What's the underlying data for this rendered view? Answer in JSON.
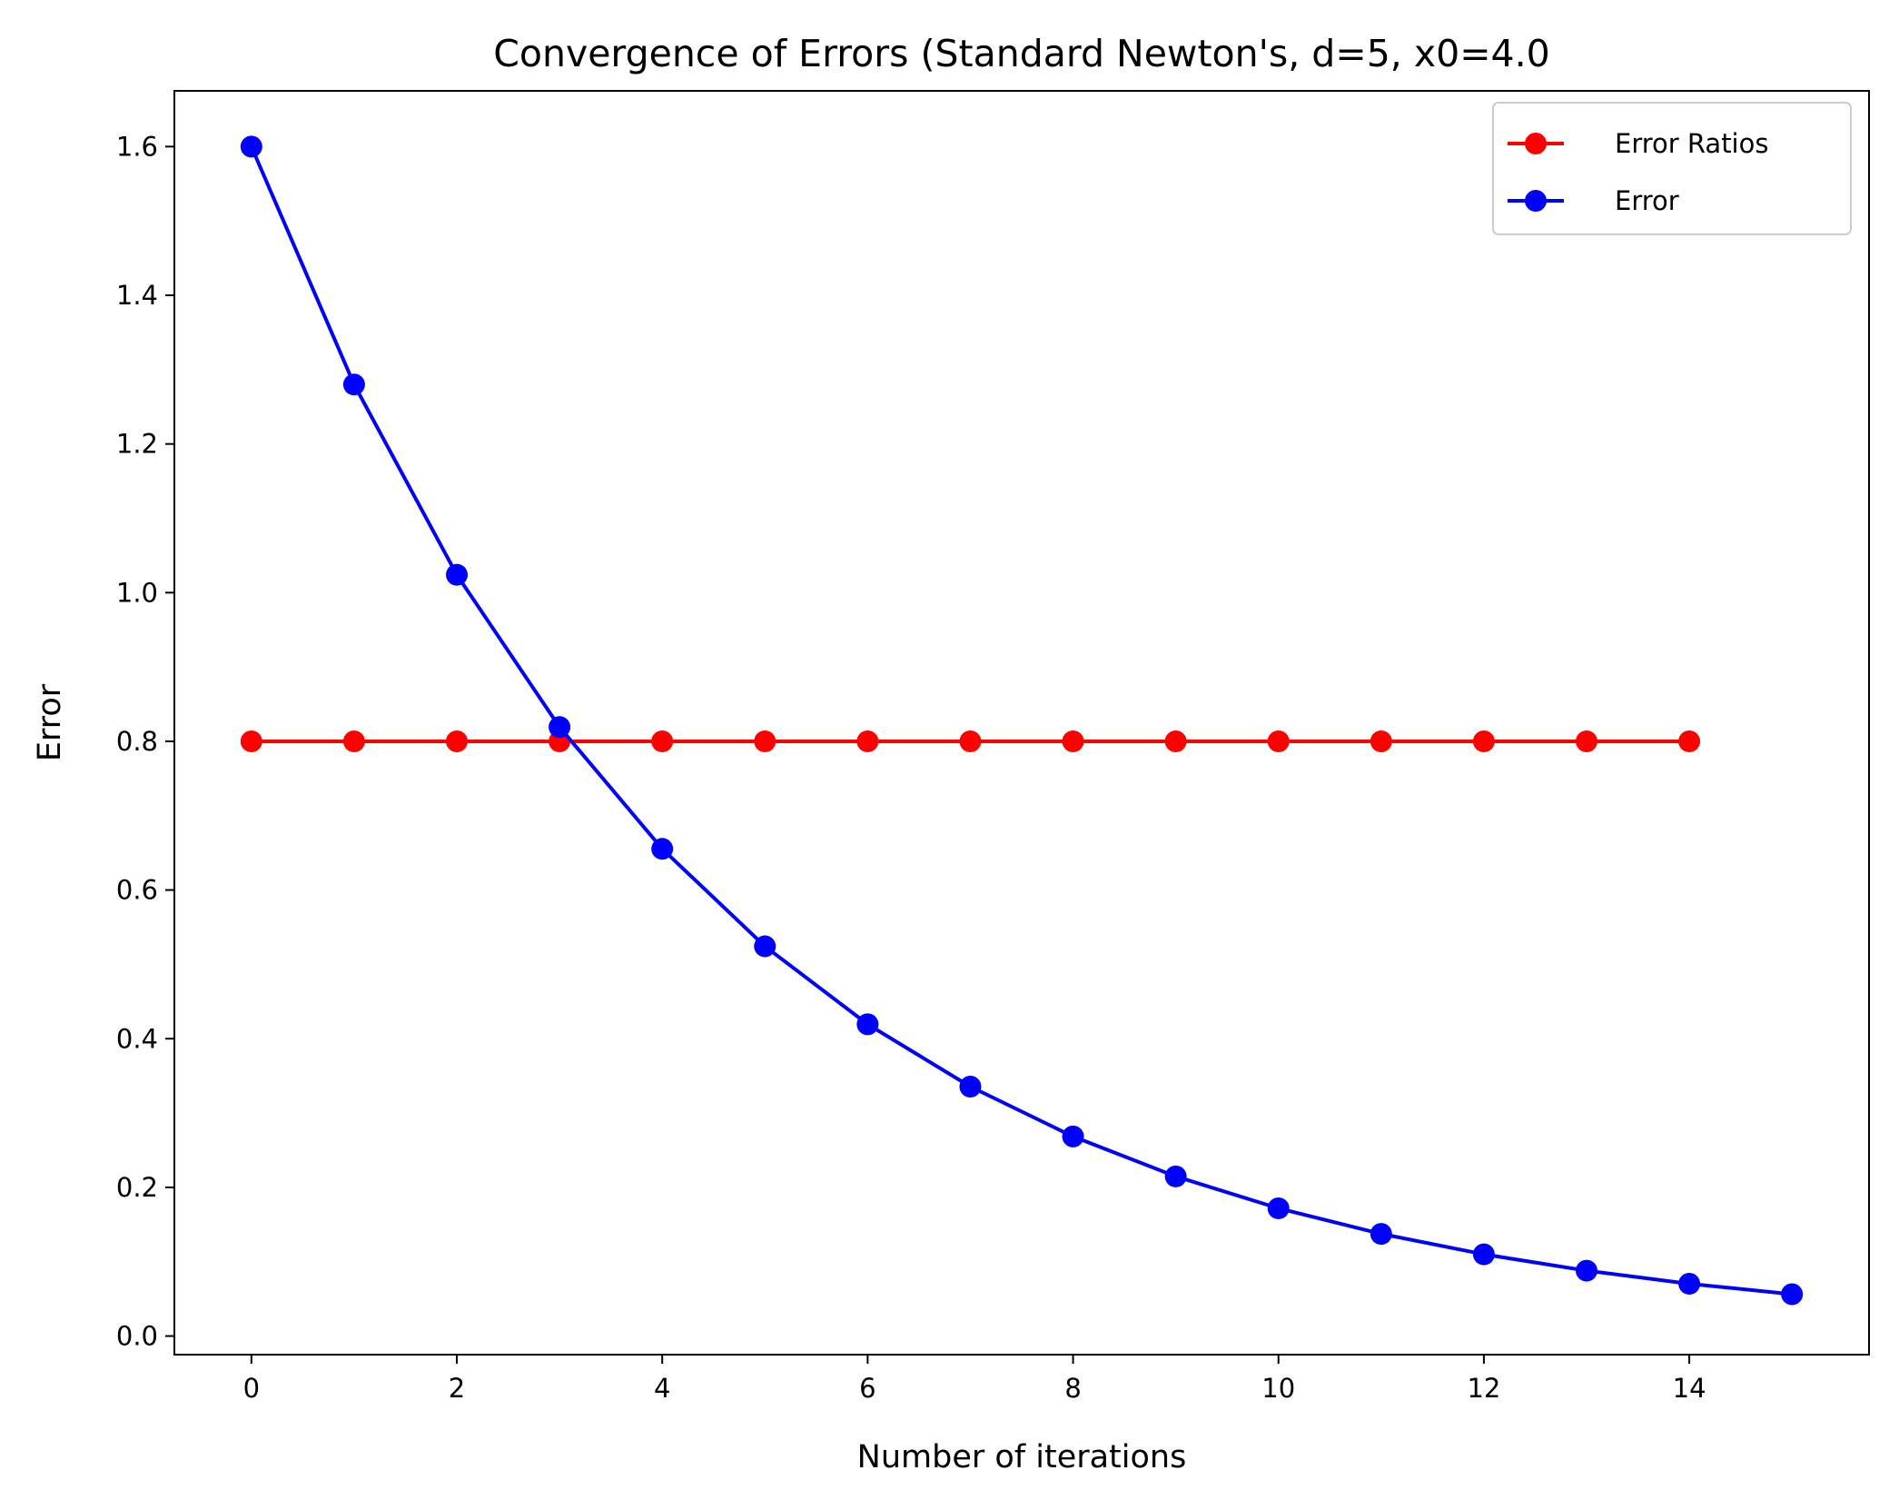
{
  "chart_data": {
    "type": "line",
    "title": "Convergence of Errors (Standard Newton's, d=5, x0=4.0",
    "xlabel": "Number of iterations",
    "ylabel": "Error",
    "xlim": [
      -0.75,
      15.75
    ],
    "ylim": [
      -0.025,
      1.675
    ],
    "xticks": [
      0,
      2,
      4,
      6,
      8,
      10,
      12,
      14
    ],
    "xtick_labels": [
      "0",
      "2",
      "4",
      "6",
      "8",
      "10",
      "12",
      "14"
    ],
    "yticks": [
      0.0,
      0.2,
      0.4,
      0.6,
      0.8,
      1.0,
      1.2,
      1.4,
      1.6
    ],
    "ytick_labels": [
      "0.0",
      "0.2",
      "0.4",
      "0.6",
      "0.8",
      "1.0",
      "1.2",
      "1.4",
      "1.6"
    ],
    "grid": false,
    "legend_position": "top-right",
    "series": [
      {
        "name": "Error Ratios",
        "color": "#ff0000",
        "marker": "circle",
        "x": [
          0,
          1,
          2,
          3,
          4,
          5,
          6,
          7,
          8,
          9,
          10,
          11,
          12,
          13,
          14
        ],
        "y": [
          0.8,
          0.8,
          0.8,
          0.8,
          0.8,
          0.8,
          0.8,
          0.8,
          0.8,
          0.8,
          0.8,
          0.8,
          0.8,
          0.8,
          0.8
        ]
      },
      {
        "name": "Error",
        "color": "#0000ff",
        "marker": "circle",
        "x": [
          0,
          1,
          2,
          3,
          4,
          5,
          6,
          7,
          8,
          9,
          10,
          11,
          12,
          13,
          14,
          15
        ],
        "y": [
          1.6,
          1.28,
          1.024,
          0.8192,
          0.65536,
          0.524288,
          0.41943,
          0.33554,
          0.26844,
          0.21475,
          0.1718,
          0.13744,
          0.10995,
          0.08796,
          0.07037,
          0.05629
        ]
      }
    ]
  }
}
